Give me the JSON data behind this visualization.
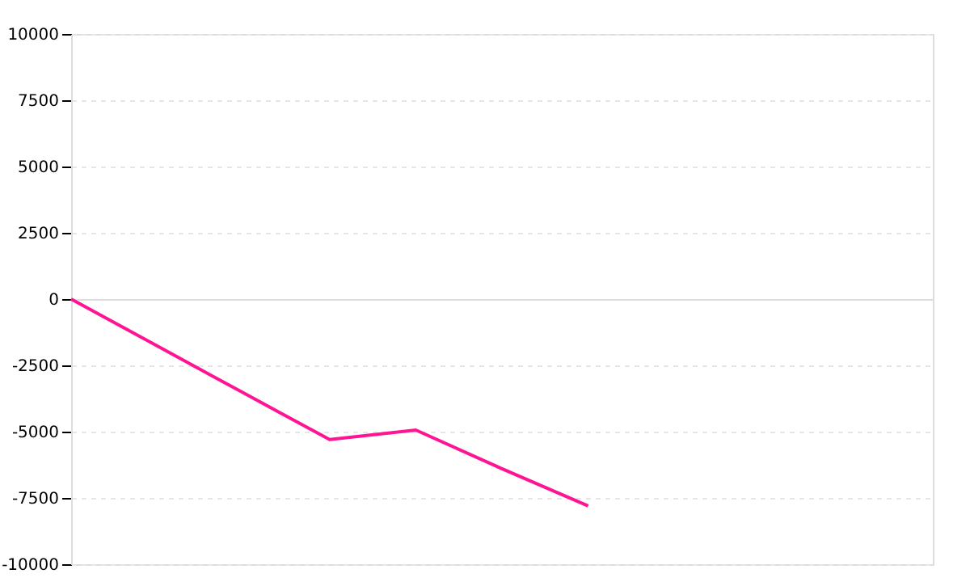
{
  "chart_data": {
    "type": "line",
    "categories": [
      null,
      null,
      null,
      null,
      null,
      null,
      null,
      null,
      null,
      null,
      null
    ],
    "series": [
      {
        "color": "#ff1493",
        "values": [
          0,
          -1770,
          -3540,
          -5300,
          -4940,
          -6400,
          -7800,
          null,
          null,
          null,
          null
        ]
      }
    ],
    "ylim": [
      -10000,
      10000
    ],
    "yticks": [
      -10000,
      -7500,
      -5000,
      -2500,
      0,
      2500,
      5000,
      7500,
      10000
    ],
    "grid": "y",
    "tick_labels": "y",
    "marker": "none",
    "line_style": "solid"
  }
}
